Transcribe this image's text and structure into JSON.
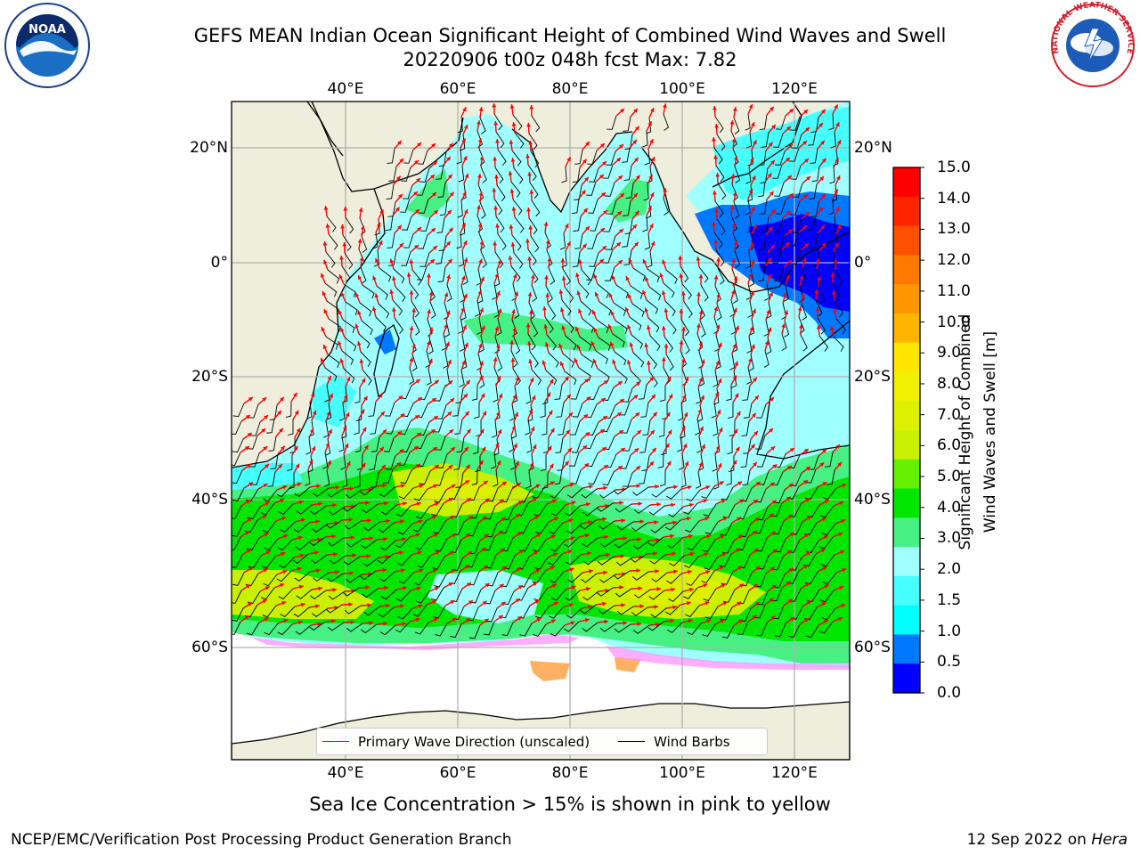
{
  "header": {
    "title_line1": "GEFS MEAN Indian Ocean Significant Height of Combined Wind Waves and Swell",
    "title_line2": "20220906 t00z 048h fcst   Max: 7.82"
  },
  "logos": {
    "noaa": {
      "text": "NOAA",
      "icon": "noaa-logo-icon"
    },
    "nws": {
      "text": "NATIONAL WEATHER SERVICE",
      "icon": "nws-logo-icon"
    }
  },
  "map": {
    "lon_ticks_top": [
      "40°E",
      "60°E",
      "80°E",
      "100°E",
      "120°E"
    ],
    "lon_ticks_bottom": [
      "40°E",
      "60°E",
      "80°E",
      "100°E",
      "120°E"
    ],
    "lat_ticks_left": [
      "20°N",
      "0°",
      "20°S",
      "40°S",
      "60°S"
    ],
    "lat_ticks_right": [
      "20°N",
      "0°",
      "20°S",
      "40°S",
      "60°S"
    ],
    "colors": {
      "land": "#efeedc",
      "ice": "#ffffff",
      "wave_arrow": "#ff0000",
      "barb": "#000000",
      "grid": "#b0b0b0"
    }
  },
  "legend": {
    "wave_label": "Primary Wave Direction (unscaled)",
    "barb_label": "Wind Barbs",
    "wave_color": "#ff0000",
    "barb_color": "#000000"
  },
  "colorbar": {
    "label_line1": "Significant Height of Combined",
    "label_line2": "Wind Waves and Swell [m]",
    "ticks": [
      "15.0",
      "14.0",
      "13.0",
      "12.0",
      "11.0",
      "10.0",
      "9.0",
      "8.0",
      "7.0",
      "6.0",
      "5.0",
      "4.0",
      "3.0",
      "2.0",
      "1.5",
      "1.0",
      "0.5",
      "0.0"
    ],
    "colors": [
      "#ff0000",
      "#ff2400",
      "#ff5000",
      "#ff7800",
      "#ff9600",
      "#ffb400",
      "#ffe600",
      "#f0f000",
      "#dcf000",
      "#c8f000",
      "#64f000",
      "#00e600",
      "#46f082",
      "#a0ffff",
      "#46ffff",
      "#00ffff",
      "#0078ff",
      "#0000ff"
    ]
  },
  "footer": {
    "ice_note": "Sea Ice Concentration > 15% is shown in pink to yellow",
    "left": "NCEP/EMC/Verification Post Processing Product Generation Branch",
    "date": "12 Sep 2022 on ",
    "host": "Hera"
  }
}
